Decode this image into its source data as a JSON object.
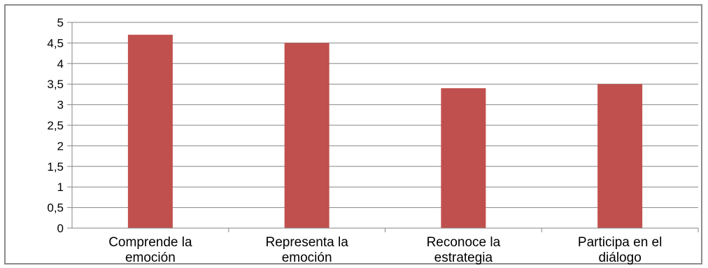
{
  "chart_data": {
    "type": "bar",
    "categories": [
      [
        "Comprende la",
        "emoción"
      ],
      [
        "Representa la",
        "emoción"
      ],
      [
        "Reconoce la",
        "estrategia"
      ],
      [
        "Participa en el",
        "diálogo"
      ]
    ],
    "values": [
      4.7,
      4.5,
      3.4,
      3.5
    ],
    "y_ticks": [
      "0",
      "0,5",
      "1",
      "1,5",
      "2",
      "2,5",
      "3",
      "3,5",
      "4",
      "4,5",
      "5"
    ],
    "ylim": [
      0,
      5
    ],
    "grid": true,
    "legend": "none",
    "bar_color": "#c0504d",
    "grid_color": "#868686",
    "axis_color": "#868686"
  }
}
